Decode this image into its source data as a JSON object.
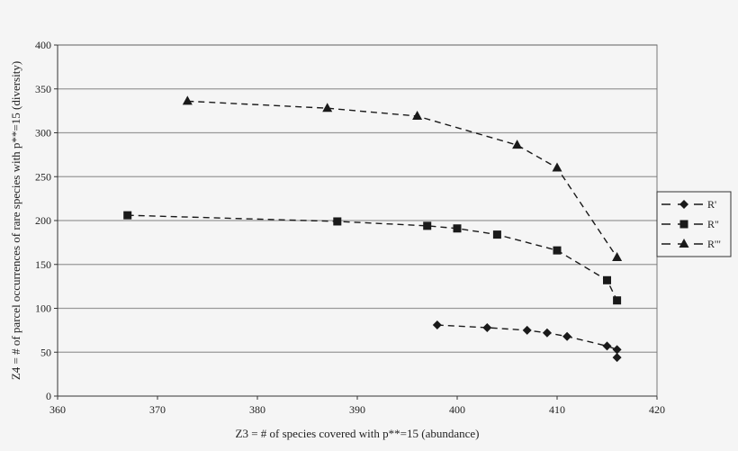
{
  "chart_data": {
    "type": "scatter",
    "title": "",
    "xlabel": "Z3 = # of species covered with p**=15 (abundance)",
    "ylabel": "Z4 = # of parcel occurrences of rare species with p**=15 (diversity)",
    "xlim": [
      360,
      420
    ],
    "ylim": [
      0,
      400
    ],
    "xticks": [
      360,
      370,
      380,
      390,
      400,
      410,
      420
    ],
    "yticks": [
      0,
      50,
      100,
      150,
      200,
      250,
      300,
      350,
      400
    ],
    "grid": "horizontal",
    "legend_position": "right",
    "line_style": "dashed",
    "series": [
      {
        "name": "R'",
        "marker": "diamond",
        "x": [
          398,
          403,
          407,
          409,
          411,
          415,
          416,
          416
        ],
        "y": [
          81,
          78,
          75,
          72,
          68,
          57,
          53,
          44
        ]
      },
      {
        "name": "R\"",
        "marker": "square",
        "x": [
          367,
          388,
          397,
          400,
          404,
          410,
          415,
          416
        ],
        "y": [
          206,
          199,
          194,
          191,
          184,
          166,
          132,
          109
        ]
      },
      {
        "name": "R'\"",
        "marker": "triangle",
        "x": [
          373,
          387,
          396,
          406,
          410,
          416
        ],
        "y": [
          336,
          328,
          319,
          286,
          260,
          158
        ]
      }
    ],
    "colors": {
      "marks": "#1a1a1a",
      "grid": "#999999",
      "background": "#f5f5f5"
    }
  }
}
